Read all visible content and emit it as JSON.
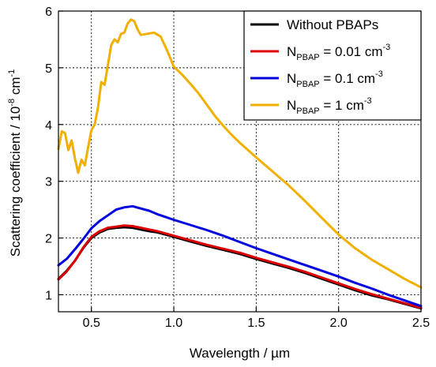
{
  "chart_data": {
    "type": "line",
    "title": "",
    "xlabel": "Wavelength / µm",
    "ylabel_main": "Scattering coefficient / 10",
    "ylabel_sup1": "-8",
    "ylabel_mid": " cm",
    "ylabel_sup2": "-1",
    "xlim": [
      0.3,
      2.5
    ],
    "ylim": [
      0.7,
      6.0
    ],
    "x_ticks": [
      0.5,
      1.0,
      1.5,
      2.0,
      2.5
    ],
    "x_tick_labels": [
      "0.5",
      "1.0",
      "1.5",
      "2.0",
      "2.5"
    ],
    "y_ticks": [
      1,
      2,
      3,
      4,
      5,
      6
    ],
    "y_tick_labels": [
      "1",
      "2",
      "3",
      "4",
      "5",
      "6"
    ],
    "grid": true,
    "legend_position": "top-right",
    "series": [
      {
        "name": "Without PBAPs",
        "legend": {
          "main": "Without PBAPs",
          "sub": "",
          "after": "",
          "sup": ""
        },
        "color": "#000000",
        "points": [
          [
            0.3,
            1.28
          ],
          [
            0.35,
            1.42
          ],
          [
            0.4,
            1.6
          ],
          [
            0.45,
            1.82
          ],
          [
            0.5,
            2.0
          ],
          [
            0.55,
            2.1
          ],
          [
            0.6,
            2.16
          ],
          [
            0.65,
            2.18
          ],
          [
            0.7,
            2.19
          ],
          [
            0.75,
            2.18
          ],
          [
            0.8,
            2.15
          ],
          [
            0.85,
            2.12
          ],
          [
            0.9,
            2.1
          ],
          [
            0.95,
            2.06
          ],
          [
            1.0,
            2.02
          ],
          [
            1.1,
            1.94
          ],
          [
            1.2,
            1.86
          ],
          [
            1.3,
            1.79
          ],
          [
            1.4,
            1.72
          ],
          [
            1.5,
            1.63
          ],
          [
            1.6,
            1.55
          ],
          [
            1.7,
            1.47
          ],
          [
            1.8,
            1.38
          ],
          [
            1.9,
            1.28
          ],
          [
            2.0,
            1.18
          ],
          [
            2.1,
            1.08
          ],
          [
            2.2,
            0.99
          ],
          [
            2.3,
            0.92
          ],
          [
            2.4,
            0.84
          ],
          [
            2.5,
            0.76
          ]
        ]
      },
      {
        "name": "NPBAP = 0.01 cm-3",
        "legend": {
          "main": "N",
          "sub": "PBAP",
          "after": " = 0.01 cm",
          "sup": "-3"
        },
        "color": "#dd0000",
        "points": [
          [
            0.3,
            1.27
          ],
          [
            0.35,
            1.41
          ],
          [
            0.4,
            1.6
          ],
          [
            0.45,
            1.83
          ],
          [
            0.5,
            2.02
          ],
          [
            0.55,
            2.12
          ],
          [
            0.6,
            2.18
          ],
          [
            0.65,
            2.2
          ],
          [
            0.7,
            2.22
          ],
          [
            0.75,
            2.21
          ],
          [
            0.8,
            2.18
          ],
          [
            0.85,
            2.15
          ],
          [
            0.9,
            2.12
          ],
          [
            0.95,
            2.08
          ],
          [
            1.0,
            2.04
          ],
          [
            1.1,
            1.96
          ],
          [
            1.2,
            1.88
          ],
          [
            1.3,
            1.81
          ],
          [
            1.4,
            1.74
          ],
          [
            1.5,
            1.65
          ],
          [
            1.6,
            1.57
          ],
          [
            1.7,
            1.49
          ],
          [
            1.8,
            1.4
          ],
          [
            1.9,
            1.3
          ],
          [
            2.0,
            1.2
          ],
          [
            2.1,
            1.1
          ],
          [
            2.2,
            1.01
          ],
          [
            2.3,
            0.93
          ],
          [
            2.4,
            0.85
          ],
          [
            2.5,
            0.77
          ]
        ]
      },
      {
        "name": "NPBAP = 0.1 cm-3",
        "legend": {
          "main": "N",
          "sub": "PBAP",
          "after": " = 0.1 cm",
          "sup": "-3"
        },
        "color": "#0000dd",
        "points": [
          [
            0.3,
            1.52
          ],
          [
            0.35,
            1.63
          ],
          [
            0.4,
            1.8
          ],
          [
            0.45,
            1.98
          ],
          [
            0.5,
            2.17
          ],
          [
            0.55,
            2.3
          ],
          [
            0.6,
            2.4
          ],
          [
            0.65,
            2.5
          ],
          [
            0.7,
            2.54
          ],
          [
            0.75,
            2.56
          ],
          [
            0.8,
            2.52
          ],
          [
            0.85,
            2.48
          ],
          [
            0.9,
            2.42
          ],
          [
            0.95,
            2.37
          ],
          [
            1.0,
            2.32
          ],
          [
            1.1,
            2.23
          ],
          [
            1.2,
            2.14
          ],
          [
            1.3,
            2.04
          ],
          [
            1.4,
            1.93
          ],
          [
            1.5,
            1.82
          ],
          [
            1.6,
            1.72
          ],
          [
            1.7,
            1.62
          ],
          [
            1.8,
            1.52
          ],
          [
            1.9,
            1.42
          ],
          [
            2.0,
            1.32
          ],
          [
            2.1,
            1.21
          ],
          [
            2.2,
            1.11
          ],
          [
            2.3,
            1.0
          ],
          [
            2.4,
            0.9
          ],
          [
            2.5,
            0.8
          ]
        ]
      },
      {
        "name": "NPBAP = 1 cm-3",
        "legend": {
          "main": "N",
          "sub": "PBAP",
          "after": " = 1 cm",
          "sup": "-3"
        },
        "color": "#f0b000",
        "points": [
          [
            0.3,
            3.57
          ],
          [
            0.32,
            3.88
          ],
          [
            0.34,
            3.85
          ],
          [
            0.36,
            3.55
          ],
          [
            0.38,
            3.72
          ],
          [
            0.4,
            3.4
          ],
          [
            0.42,
            3.15
          ],
          [
            0.44,
            3.38
          ],
          [
            0.46,
            3.28
          ],
          [
            0.48,
            3.6
          ],
          [
            0.5,
            3.9
          ],
          [
            0.52,
            4.0
          ],
          [
            0.54,
            4.3
          ],
          [
            0.56,
            4.75
          ],
          [
            0.58,
            4.7
          ],
          [
            0.6,
            5.05
          ],
          [
            0.62,
            5.4
          ],
          [
            0.64,
            5.5
          ],
          [
            0.66,
            5.45
          ],
          [
            0.68,
            5.6
          ],
          [
            0.7,
            5.62
          ],
          [
            0.72,
            5.78
          ],
          [
            0.74,
            5.85
          ],
          [
            0.76,
            5.82
          ],
          [
            0.78,
            5.68
          ],
          [
            0.8,
            5.58
          ],
          [
            0.84,
            5.6
          ],
          [
            0.88,
            5.62
          ],
          [
            0.92,
            5.55
          ],
          [
            0.96,
            5.3
          ],
          [
            1.0,
            5.02
          ],
          [
            1.05,
            4.88
          ],
          [
            1.1,
            4.72
          ],
          [
            1.15,
            4.55
          ],
          [
            1.2,
            4.35
          ],
          [
            1.25,
            4.15
          ],
          [
            1.3,
            3.98
          ],
          [
            1.35,
            3.82
          ],
          [
            1.4,
            3.68
          ],
          [
            1.5,
            3.42
          ],
          [
            1.6,
            3.17
          ],
          [
            1.7,
            2.92
          ],
          [
            1.8,
            2.64
          ],
          [
            1.9,
            2.35
          ],
          [
            2.0,
            2.06
          ],
          [
            2.1,
            1.82
          ],
          [
            2.2,
            1.62
          ],
          [
            2.3,
            1.45
          ],
          [
            2.4,
            1.28
          ],
          [
            2.5,
            1.13
          ]
        ]
      }
    ]
  }
}
